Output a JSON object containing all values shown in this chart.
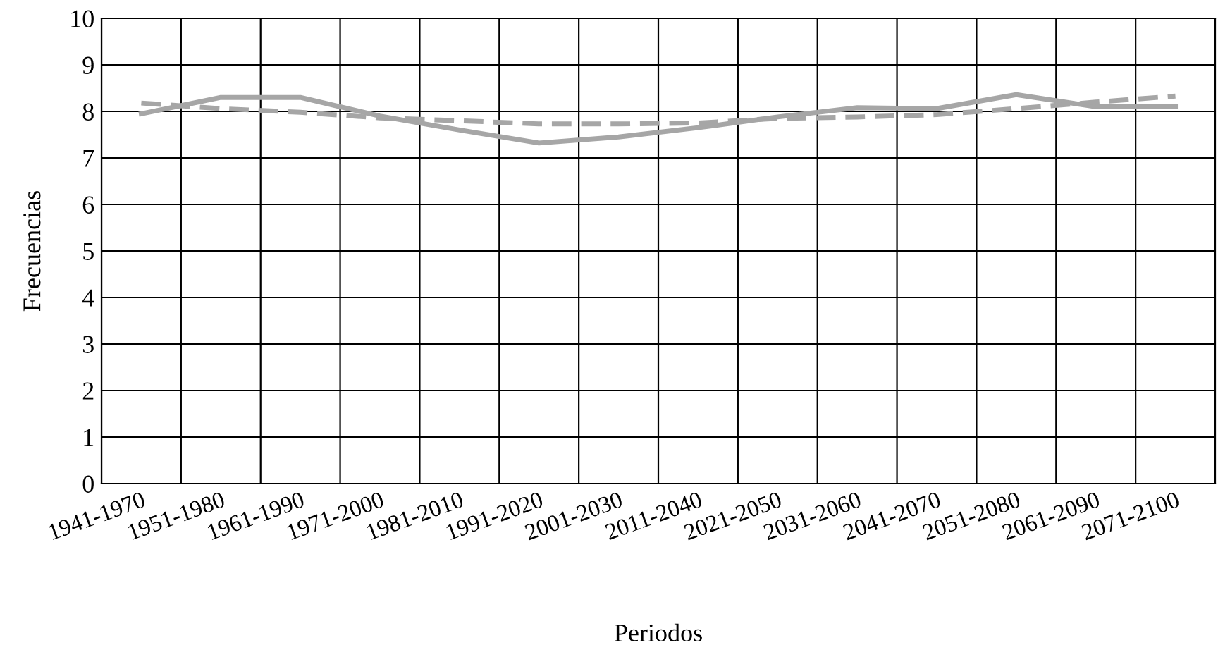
{
  "chart_data": {
    "type": "line",
    "xlabel": "Periodos",
    "ylabel": "Frecuencias",
    "categories": [
      "1941-1970",
      "1951-1980",
      "1961-1990",
      "1971-2000",
      "1981-2010",
      "1991-2020",
      "2001-2030",
      "2011-2040",
      "2021-2050",
      "2031-2060",
      "2041-2070",
      "2051-2080",
      "2061-2090",
      "2071-2100"
    ],
    "series": [
      {
        "color": "#a6a6a6",
        "line_style": "solid",
        "values": [
          7.95,
          8.3,
          8.3,
          7.9,
          7.6,
          7.32,
          7.45,
          7.65,
          7.88,
          8.08,
          8.06,
          8.36,
          8.1,
          8.1
        ]
      },
      {
        "color": "#a6a6a6",
        "line_style": "dashed",
        "values": [
          8.18,
          8.06,
          7.98,
          7.86,
          7.8,
          7.73,
          7.73,
          7.75,
          7.85,
          7.88,
          7.93,
          8.06,
          8.2,
          8.33
        ]
      }
    ],
    "ylim": [
      0,
      10
    ],
    "yticks": [
      0,
      1,
      2,
      3,
      4,
      5,
      6,
      7,
      8,
      9,
      10
    ],
    "grid": true,
    "marker": "none"
  }
}
